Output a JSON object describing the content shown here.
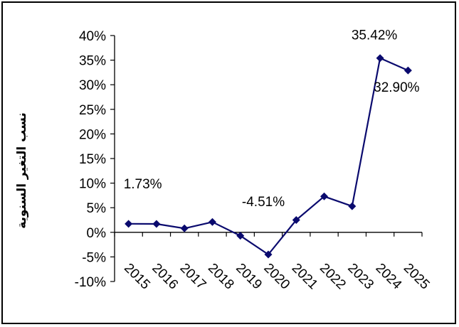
{
  "chart_data": {
    "type": "line",
    "x": [
      "2015",
      "2016",
      "2017",
      "2018",
      "2019",
      "2020",
      "2021",
      "2022",
      "2023",
      "2024",
      "2025"
    ],
    "series": [
      {
        "values": [
          1.73,
          1.7,
          0.8,
          2.1,
          -0.7,
          -4.51,
          2.5,
          7.3,
          5.3,
          35.42,
          32.9
        ],
        "color": "#0a0a6e",
        "marker": "diamond"
      }
    ],
    "ylabel": "نسب التغير السنوية",
    "xlabel": "",
    "title": "",
    "ylim": [
      -10,
      40
    ],
    "yticks": [
      "40%",
      "35%",
      "30%",
      "25%",
      "20%",
      "15%",
      "10%",
      "5%",
      "0%",
      "-5%",
      "-10%"
    ],
    "data_labels": [
      {
        "index": 0,
        "text": "1.73%"
      },
      {
        "index": 5,
        "text": "-4.51%"
      },
      {
        "index": 9,
        "text": "35.42%"
      },
      {
        "index": 10,
        "text": "32.90%"
      }
    ],
    "grid": false,
    "legend": "none"
  }
}
